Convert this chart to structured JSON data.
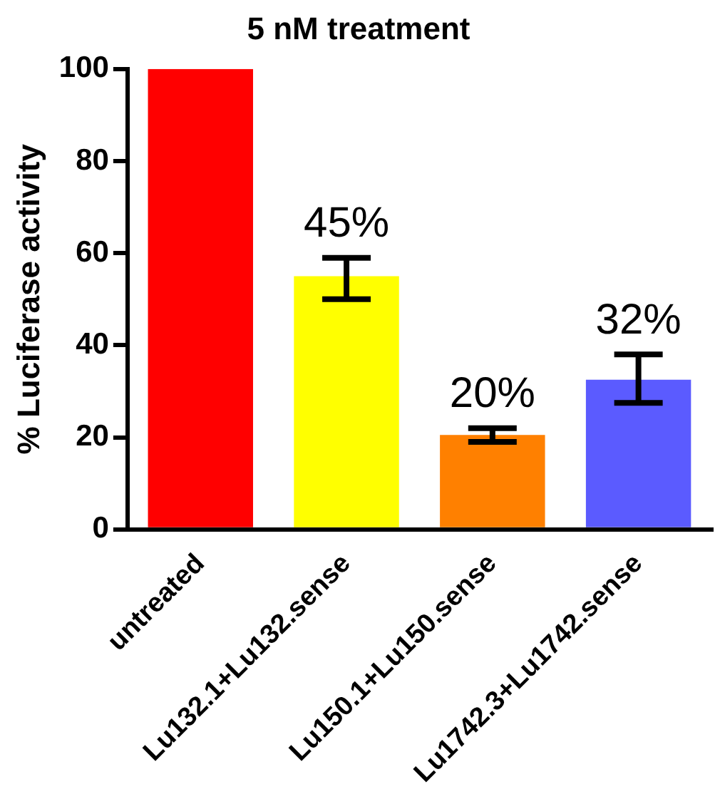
{
  "chart_data": {
    "type": "bar",
    "title": "5 nM treatment",
    "ylabel": "% Luciferase activity",
    "categories": [
      "untreated",
      "Lu132.1+Lu132.sense",
      "Lu150.1+Lu150.sense",
      "Lu1742.3+Lu1742.sense"
    ],
    "values": [
      100,
      55,
      20.5,
      32.5
    ],
    "colors": [
      "#ff0000",
      "#ffff00",
      "#ff8000",
      "#5b5bff"
    ],
    "errors": [
      null,
      [
        50,
        59
      ],
      [
        19,
        22
      ],
      [
        27.5,
        38
      ]
    ],
    "annotations": [
      "45%",
      "20%",
      "32%"
    ],
    "ylim": [
      0,
      100
    ],
    "yticks": [
      0,
      20,
      40,
      60,
      80,
      100
    ],
    "grid": false,
    "legend": false
  }
}
